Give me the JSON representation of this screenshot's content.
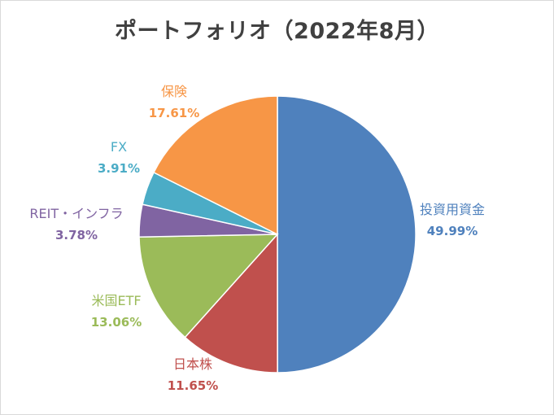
{
  "chart_data": {
    "type": "pie",
    "title": "ポートフォリオ（2022年8月）",
    "slices": [
      {
        "label": "投資用資金",
        "value": 49.99,
        "value_label": "49.99%",
        "color": "#4f81bd"
      },
      {
        "label": "日本株",
        "value": 11.65,
        "value_label": "11.65%",
        "color": "#c0504d"
      },
      {
        "label": "米国ETF",
        "value": 13.06,
        "value_label": "13.06%",
        "color": "#9bbb59"
      },
      {
        "label": "REIT・インフラ",
        "value": 3.78,
        "value_label": "3.78%",
        "color": "#8064a2"
      },
      {
        "label": "FX",
        "value": 3.91,
        "value_label": "3.91%",
        "color": "#4bacc6"
      },
      {
        "label": "保険",
        "value": 17.61,
        "value_label": "17.61%",
        "color": "#f79646"
      }
    ],
    "legend": "none",
    "data_labels": "outside"
  }
}
